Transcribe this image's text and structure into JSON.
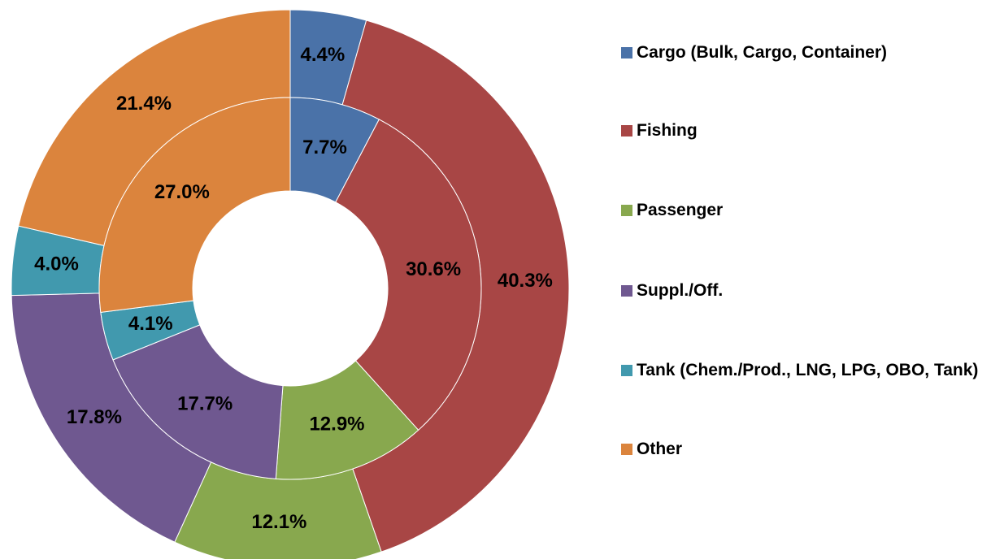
{
  "chart_data": {
    "type": "doughnut",
    "categories": [
      "Cargo (Bulk, Cargo, Container)",
      "Fishing",
      "Passenger",
      "Suppl./Off.",
      "Tank (Chem./Prod., LNG, LPG, OBO, Tank)",
      "Other"
    ],
    "colors": [
      "#4a72a8",
      "#a84645",
      "#88a84e",
      "#6f5890",
      "#4199ae",
      "#db843d"
    ],
    "series": [
      {
        "values": [
          4.4,
          40.3,
          12.1,
          17.8,
          4.0,
          21.4
        ],
        "value_labels": [
          "4.4%",
          "40.3%",
          "12.1%",
          "17.8%",
          "4.0%",
          "21.4%"
        ]
      },
      {
        "values": [
          7.7,
          30.6,
          12.9,
          17.7,
          4.1,
          27.0
        ],
        "value_labels": [
          "7.7%",
          "30.6%",
          "12.9%",
          "17.7%",
          "4.1%",
          "27.0%"
        ]
      }
    ],
    "legend": "right"
  }
}
